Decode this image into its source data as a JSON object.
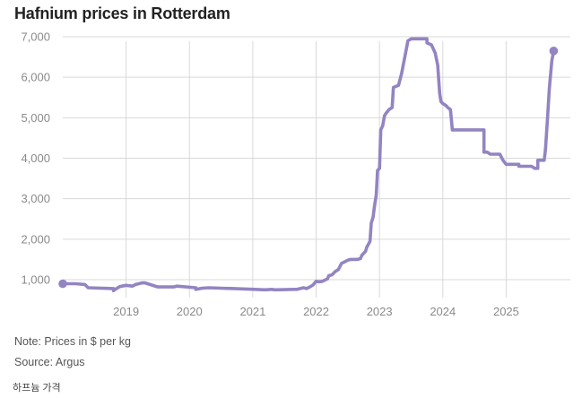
{
  "chart_data": {
    "type": "line",
    "title": "Hafnium prices in Rotterdam",
    "xlabel": "",
    "ylabel": "",
    "unit": "$ per kg",
    "ylim": [
      500,
      7000
    ],
    "xlim": [
      2018.0,
      2025.9
    ],
    "y_ticks": [
      1000,
      2000,
      3000,
      4000,
      5000,
      6000,
      7000
    ],
    "y_tick_labels": [
      "1,000",
      "2,000",
      "3,000",
      "4,000",
      "5,000",
      "6,000",
      "7,000"
    ],
    "x_ticks": [
      2019,
      2020,
      2021,
      2022,
      2023,
      2024,
      2025
    ],
    "x_tick_labels": [
      "2019",
      "2020",
      "2021",
      "2022",
      "2023",
      "2024",
      "2025"
    ],
    "color": "#9384c2",
    "series": [
      {
        "name": "Hafnium price",
        "x": [
          2018.0,
          2018.2,
          2018.35,
          2018.4,
          2018.8,
          2018.8,
          2018.85,
          2018.9,
          2019.0,
          2019.1,
          2019.15,
          2019.25,
          2019.3,
          2019.5,
          2019.75,
          2019.8,
          2020.1,
          2020.1,
          2020.2,
          2020.3,
          2020.5,
          2020.9,
          2021.2,
          2021.3,
          2021.35,
          2021.65,
          2021.7,
          2021.8,
          2021.85,
          2021.9,
          2021.95,
          2022.0,
          2022.05,
          2022.1,
          2022.15,
          2022.18,
          2022.2,
          2022.25,
          2022.3,
          2022.35,
          2022.4,
          2022.5,
          2022.55,
          2022.65,
          2022.7,
          2022.72,
          2022.78,
          2022.8,
          2022.85,
          2022.87,
          2022.9,
          2022.92,
          2022.95,
          2022.97,
          2023.0,
          2023.02,
          2023.05,
          2023.08,
          2023.1,
          2023.15,
          2023.2,
          2023.22,
          2023.3,
          2023.35,
          2023.4,
          2023.45,
          2023.5,
          2023.5,
          2023.55,
          2023.75,
          2023.75,
          2023.82,
          2023.88,
          2023.92,
          2023.95,
          2023.97,
          2024.0,
          2024.05,
          2024.08,
          2024.12,
          2024.15,
          2024.2,
          2024.5,
          2024.65,
          2024.65,
          2024.7,
          2024.75,
          2024.9,
          2024.95,
          2025.0,
          2025.2,
          2025.2,
          2025.4,
          2025.45,
          2025.5,
          2025.5,
          2025.6,
          2025.62,
          2025.65,
          2025.68,
          2025.72,
          2025.75
        ],
        "values": [
          900,
          900,
          880,
          800,
          780,
          730,
          780,
          830,
          860,
          840,
          880,
          920,
          920,
          820,
          820,
          840,
          800,
          760,
          790,
          800,
          790,
          770,
          750,
          760,
          750,
          760,
          760,
          800,
          780,
          820,
          870,
          960,
          950,
          960,
          1000,
          1020,
          1100,
          1120,
          1200,
          1250,
          1400,
          1480,
          1500,
          1500,
          1520,
          1600,
          1700,
          1800,
          1950,
          2400,
          2550,
          2800,
          3100,
          3700,
          3750,
          4700,
          4800,
          5050,
          5100,
          5200,
          5250,
          5750,
          5800,
          6100,
          6500,
          6900,
          6950,
          6950,
          6950,
          6950,
          6850,
          6800,
          6600,
          6300,
          5600,
          5400,
          5350,
          5300,
          5250,
          5200,
          4700,
          4700,
          4700,
          4700,
          4150,
          4150,
          4100,
          4100,
          3950,
          3850,
          3850,
          3800,
          3800,
          3750,
          3750,
          3950,
          3950,
          4200,
          4900,
          5700,
          6400,
          6650
        ]
      }
    ]
  },
  "footer": {
    "note": "Note: Prices in $ per kg",
    "source": "Source: Argus",
    "caption": "하프늄 가격"
  }
}
